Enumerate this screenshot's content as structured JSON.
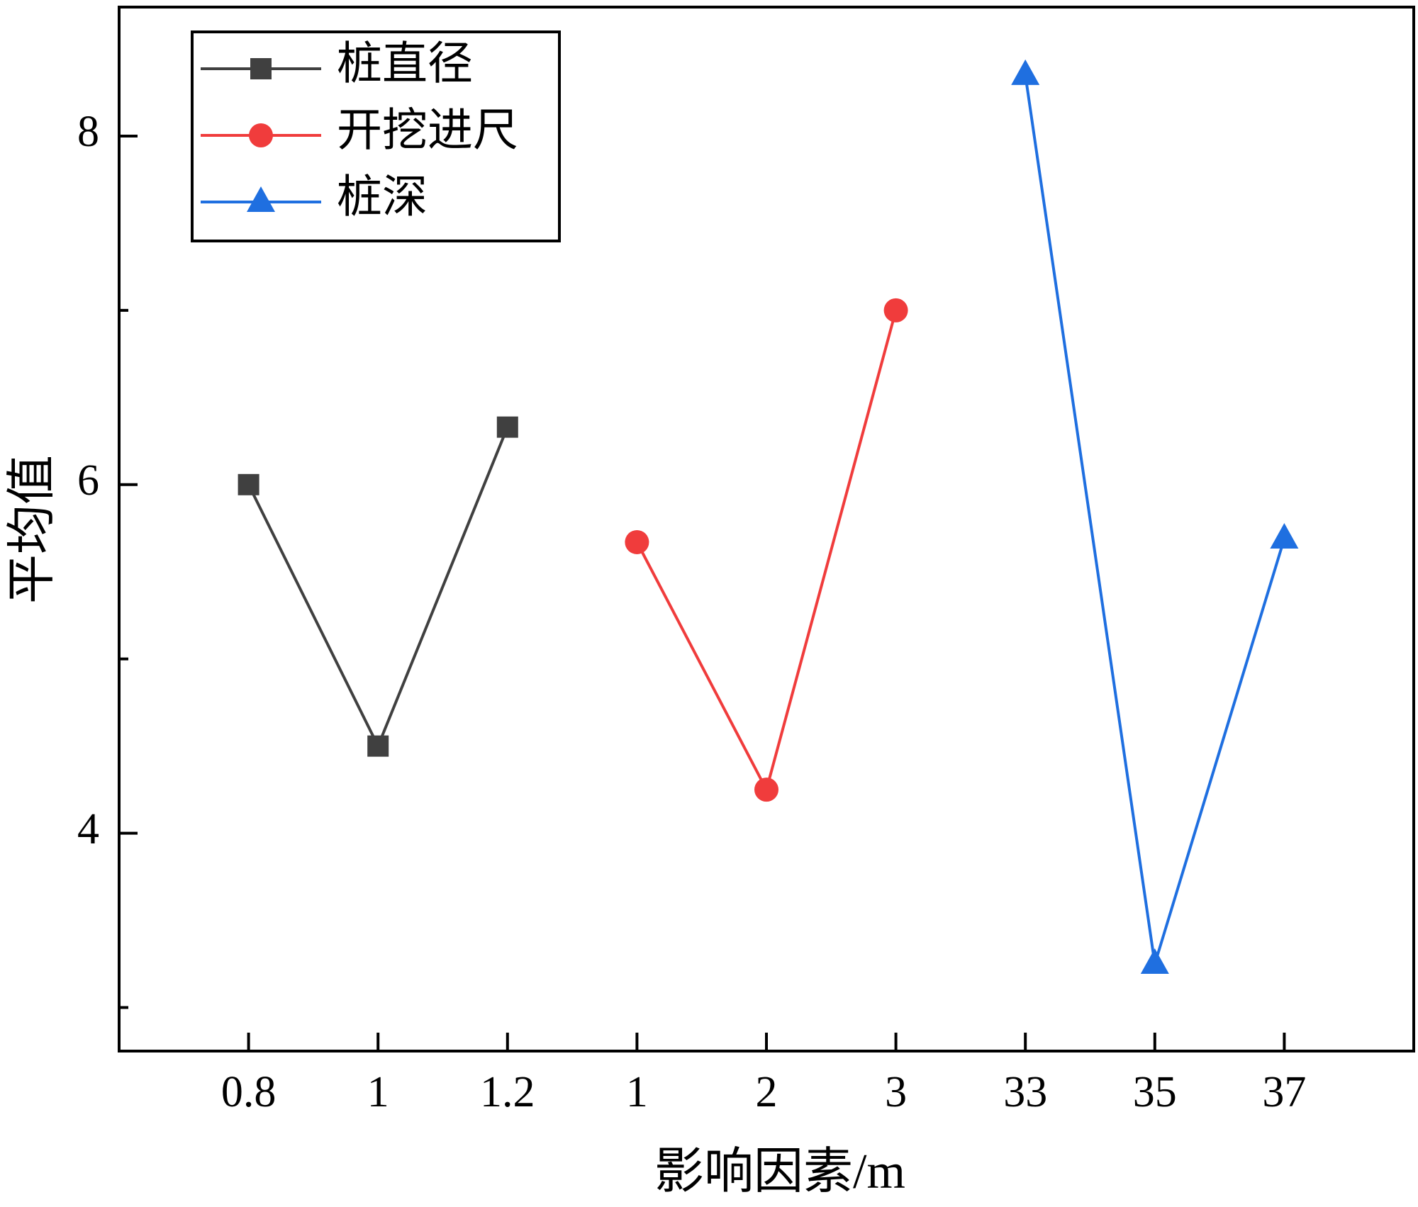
{
  "chart_data": {
    "type": "line",
    "x_label": "影响因素/m",
    "y_label": "平均值",
    "categories": [
      "0.8",
      "1",
      "1.2",
      "1",
      "2",
      "3",
      "33",
      "35",
      "37"
    ],
    "series": [
      {
        "name": "桩直径",
        "color": "#404040",
        "marker": "square",
        "values": [
          6.0,
          4.5,
          6.33,
          null,
          null,
          null,
          null,
          null,
          null
        ]
      },
      {
        "name": "开挖进尺",
        "color": "#f03c3c",
        "marker": "circle",
        "values": [
          null,
          null,
          null,
          5.67,
          4.25,
          7.0,
          null,
          null,
          null
        ]
      },
      {
        "name": "桩深",
        "color": "#1f6fe0",
        "marker": "triangle",
        "values": [
          null,
          null,
          null,
          null,
          null,
          null,
          8.35,
          3.25,
          5.69
        ]
      }
    ],
    "ylim": [
      2.75,
      8.74
    ],
    "yticks": [
      4,
      6,
      8
    ],
    "minor_yticks": [
      3,
      5,
      7
    ],
    "legend": "upper left",
    "grid": false
  }
}
